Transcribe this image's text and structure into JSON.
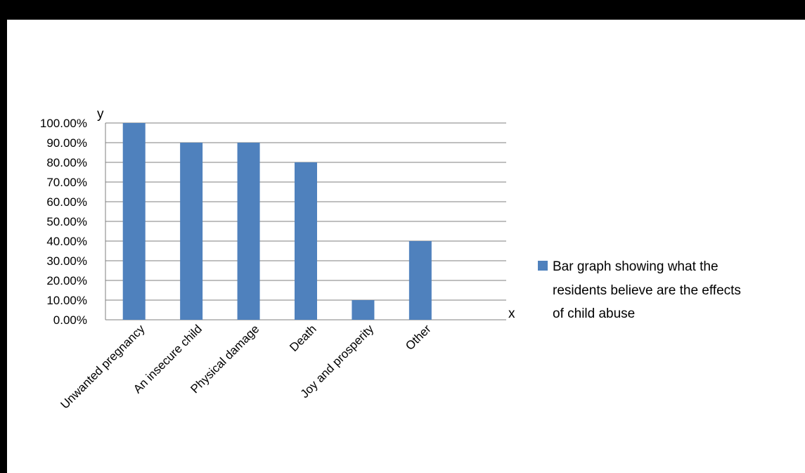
{
  "chart_data": {
    "type": "bar",
    "categories": [
      "Unwanted pregnancy",
      "An insecure child",
      "Physical damage",
      "Death",
      "Joy and prosperity",
      "Other"
    ],
    "series": [
      {
        "name": "Bar graph showing what the residents believe are the effects of child abuse",
        "values": [
          1.0,
          0.9,
          0.9,
          0.8,
          0.1,
          0.4
        ]
      }
    ],
    "xlabel": "x",
    "ylabel": "y",
    "ylim": [
      0,
      1
    ],
    "yticks": [
      "0.00%",
      "10.00%",
      "20.00%",
      "30.00%",
      "40.00%",
      "50.00%",
      "60.00%",
      "70.00%",
      "80.00%",
      "90.00%",
      "100.00%"
    ],
    "grid": true,
    "legend_position": "right",
    "legend_lines": [
      "Bar graph showing what the",
      "residents believe are the effects",
      "of child abuse"
    ],
    "colors": {
      "bar": "#4F81BD",
      "grid": "#7F7F7F",
      "background": "#FFFFFF"
    }
  }
}
